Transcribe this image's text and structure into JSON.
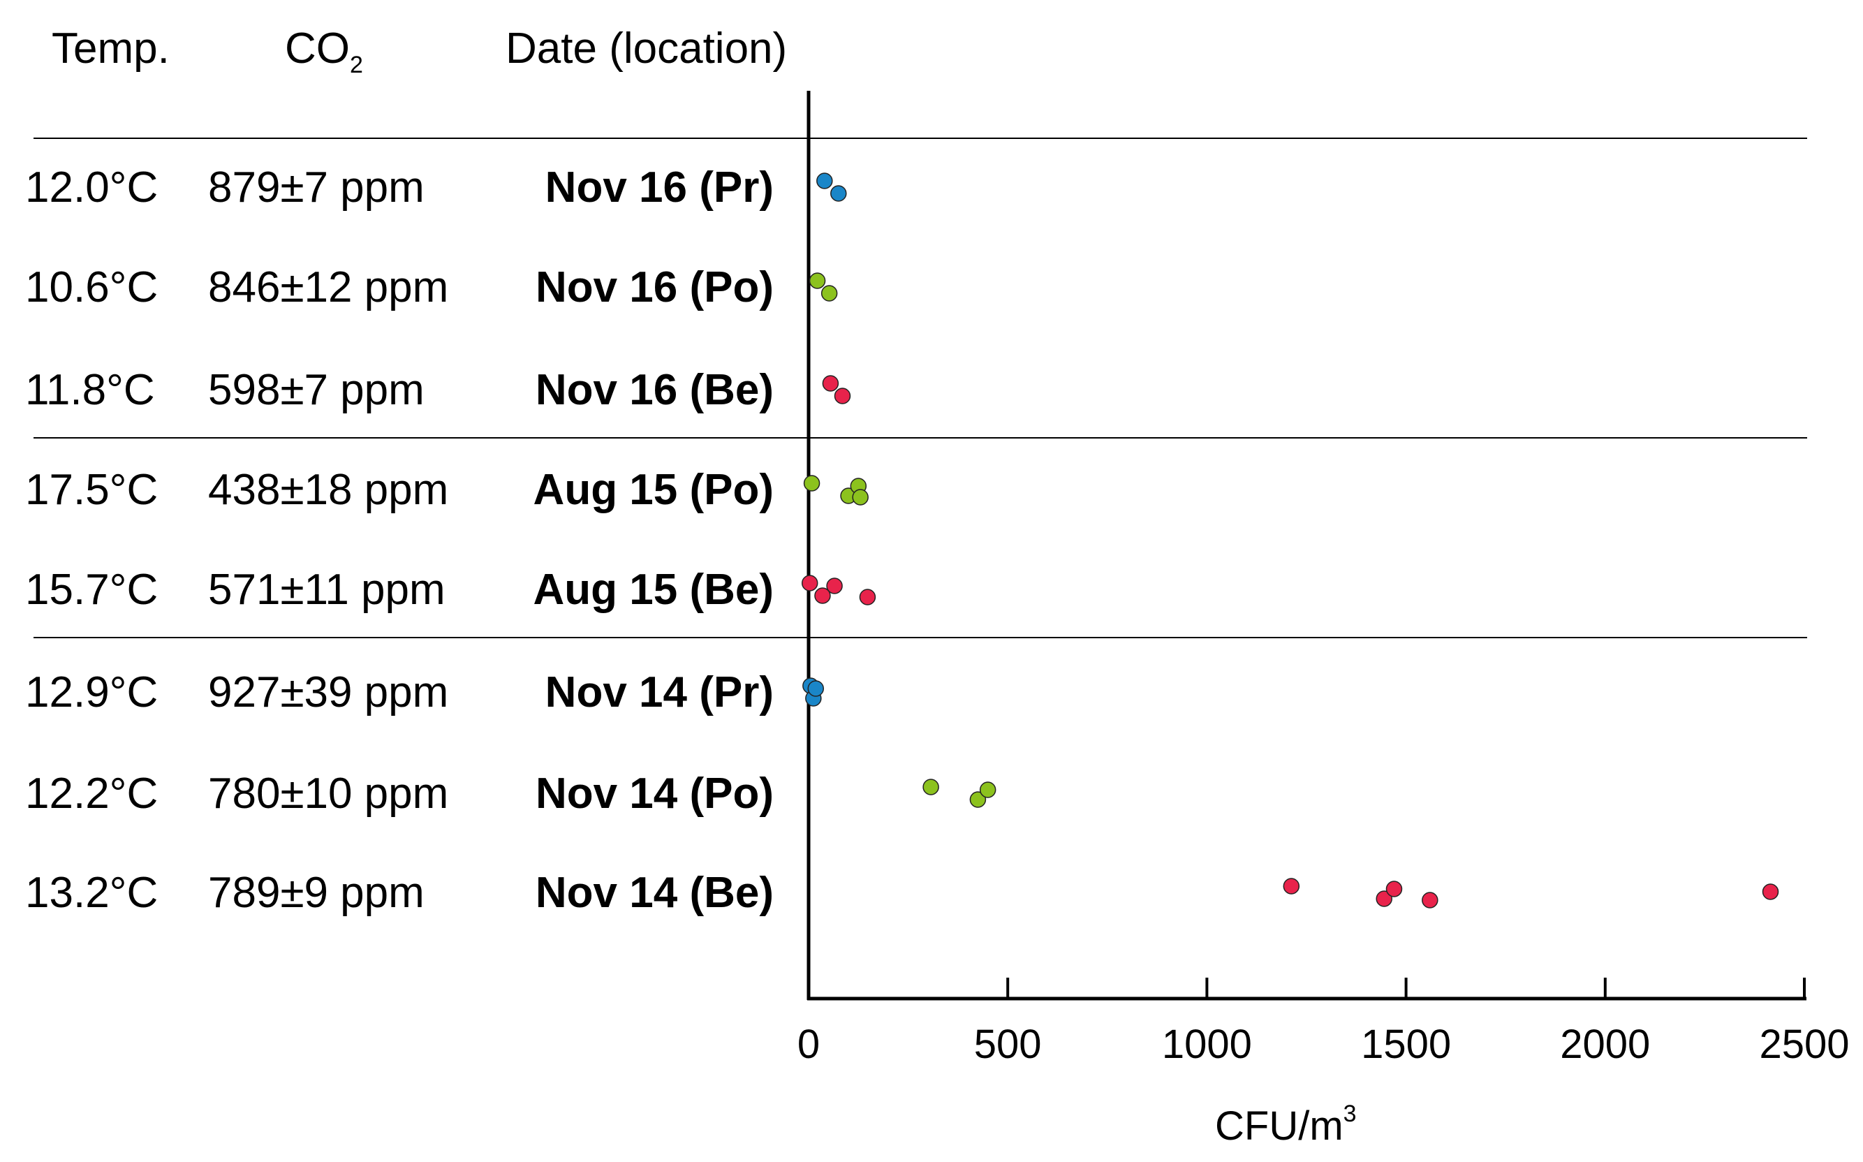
{
  "columns": {
    "temp_header": "Temp.",
    "co2_header_main": "CO",
    "co2_header_sub": "2",
    "date_header": "Date (location)"
  },
  "rows": [
    {
      "temp": "12.0°C",
      "co2": "879±7 ppm",
      "date": "Nov 16 (Pr)",
      "group": 0
    },
    {
      "temp": "10.6°C",
      "co2": "846±12 ppm",
      "date": "Nov 16 (Po)",
      "group": 0
    },
    {
      "temp": "11.8°C",
      "co2": "598±7 ppm",
      "date": "Nov 16 (Be)",
      "group": 0
    },
    {
      "temp": "17.5°C",
      "co2": "438±18 ppm",
      "date": "Aug 15 (Po)",
      "group": 1
    },
    {
      "temp": "15.7°C",
      "co2": "571±11 ppm",
      "date": "Aug 15 (Be)",
      "group": 1
    },
    {
      "temp": "12.9°C",
      "co2": "927±39 ppm",
      "date": "Nov 14 (Pr)",
      "group": 2
    },
    {
      "temp": "12.2°C",
      "co2": "780±10 ppm",
      "date": "Nov 14 (Po)",
      "group": 2
    },
    {
      "temp": "13.2°C",
      "co2": "789±9 ppm",
      "date": "Nov 14 (Be)",
      "group": 2
    }
  ],
  "chart_data": {
    "type": "scatter",
    "xlabel_main": "CFU/m",
    "xlabel_sup": "3",
    "xlim": [
      0,
      2500
    ],
    "xticks": [
      "0",
      "500",
      "1000",
      "1500",
      "2000",
      "2500"
    ],
    "legend": "none",
    "grid": false,
    "location_colors": {
      "Pr": "#1a86c8",
      "Po": "#8cc21e",
      "Be": "#e8234b"
    },
    "series": [
      {
        "row": 0,
        "location": "Pr",
        "values": [
          40,
          75
        ]
      },
      {
        "row": 1,
        "location": "Po",
        "values": [
          22,
          52
        ]
      },
      {
        "row": 2,
        "location": "Be",
        "values": [
          55,
          85
        ]
      },
      {
        "row": 3,
        "location": "Po",
        "values": [
          8,
          100,
          125,
          130
        ]
      },
      {
        "row": 4,
        "location": "Be",
        "values": [
          3,
          35,
          65,
          148
        ]
      },
      {
        "row": 5,
        "location": "Pr",
        "values": [
          5,
          12,
          18
        ]
      },
      {
        "row": 6,
        "location": "Po",
        "values": [
          307,
          425,
          450
        ]
      },
      {
        "row": 7,
        "location": "Be",
        "values": [
          1212,
          1445,
          1470,
          1560,
          2415
        ]
      }
    ]
  }
}
